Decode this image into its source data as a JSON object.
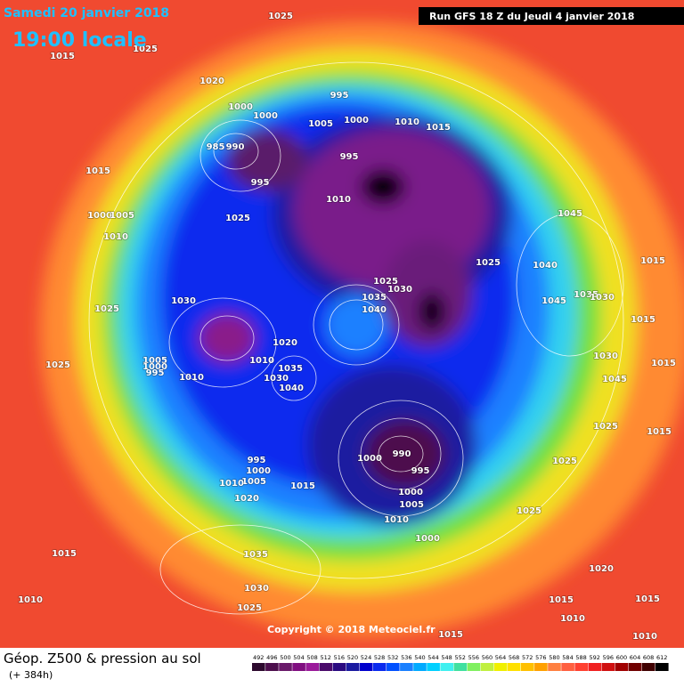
{
  "header": {
    "date": "Samedi 20 janvier 2018",
    "time": "19:00 locale",
    "run": "Run GFS 18 Z du Jeudi 4 janvier 2018"
  },
  "map": {
    "isobar_labels": [
      1025,
      1015,
      1025,
      1020,
      995,
      1000,
      1000,
      1005,
      1000,
      1010,
      1015,
      985,
      990,
      995,
      1015,
      995,
      1010,
      1000,
      1005,
      1025,
      1045,
      1010,
      1025,
      1040,
      1015,
      1025,
      1030,
      1035,
      1030,
      1035,
      1030,
      1045,
      1040,
      1025,
      1015,
      1020,
      1030,
      1005,
      1000,
      995,
      1010,
      1035,
      1025,
      1010,
      1030,
      1015,
      1040,
      1045,
      1025,
      1015,
      990,
      1000,
      995,
      1025,
      995,
      1000,
      1005,
      1010,
      1015,
      1000,
      1020,
      1005,
      1025,
      1010,
      1000,
      1035,
      1015,
      1020,
      1030,
      1010,
      1025,
      1015,
      1015,
      1010,
      1010,
      1015
    ],
    "copyright": "Copyright © 2018 Meteociel.fr"
  },
  "footer": {
    "title": "Géop. Z500 & pression au sol",
    "lead_time": "(+ 384h)"
  },
  "colorbar": {
    "ticks": [
      492,
      496,
      500,
      504,
      508,
      512,
      516,
      520,
      524,
      528,
      532,
      536,
      540,
      544,
      548,
      552,
      556,
      560,
      564,
      568,
      572,
      576,
      580,
      584,
      588,
      592,
      596,
      600,
      604,
      608,
      612
    ],
    "colors": [
      "#2d0a2e",
      "#4d0f4d",
      "#6a1a6a",
      "#800e80",
      "#9a1a9a",
      "#4a0a6a",
      "#2a0a80",
      "#1a1aa0",
      "#0000cc",
      "#0a2aee",
      "#0050ff",
      "#1a80ff",
      "#00aaff",
      "#00d0ff",
      "#40f0f0",
      "#40e0a0",
      "#80f060",
      "#c0f040",
      "#f0f000",
      "#ffe000",
      "#ffc000",
      "#ffa000",
      "#ff8040",
      "#ff6040",
      "#ff4030",
      "#f02020",
      "#d01010",
      "#a00000",
      "#700000",
      "#400000",
      "#000000"
    ]
  }
}
